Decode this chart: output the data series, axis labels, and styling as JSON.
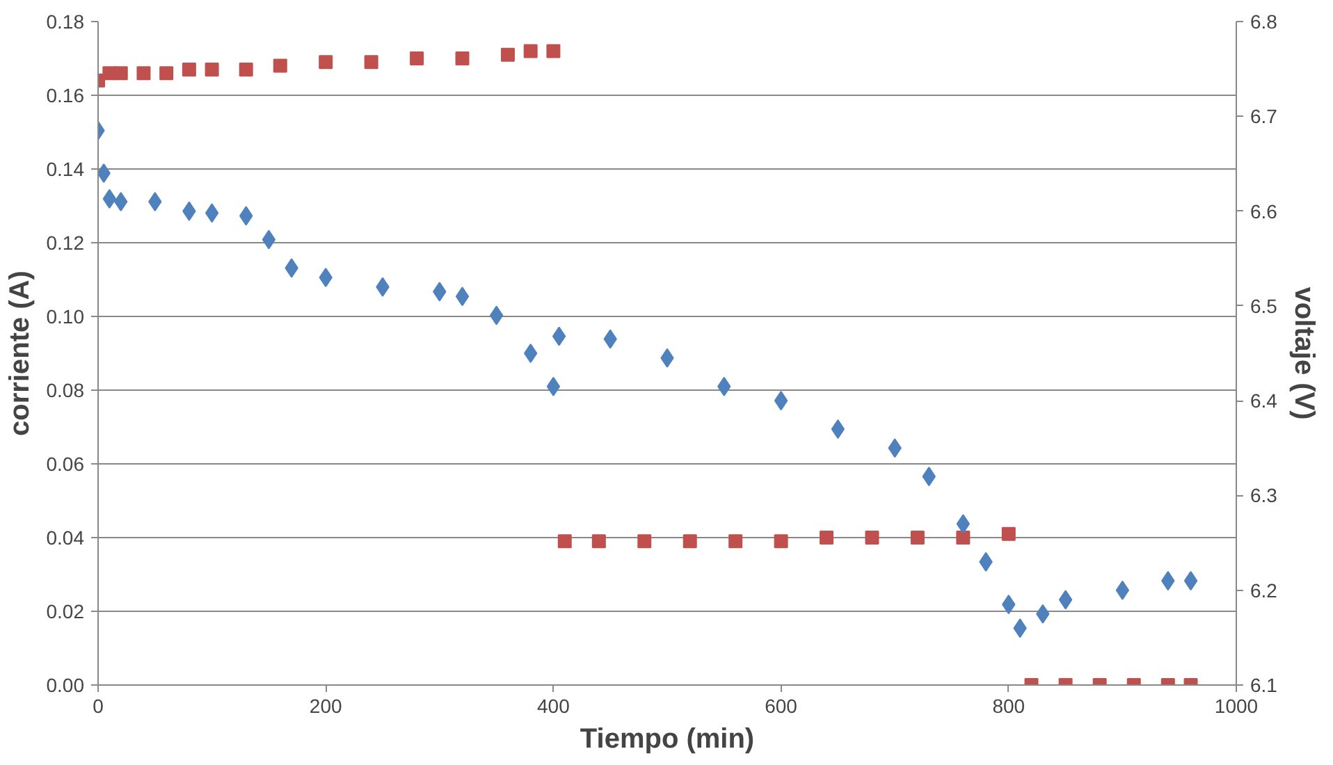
{
  "chart_data": {
    "type": "scatter",
    "xlabel": "Tiempo (min)",
    "ylabel": "corriente (A)",
    "y2label": "voltaje (V)",
    "xlim": [
      0,
      1000
    ],
    "xticks": [
      0,
      200,
      400,
      600,
      800,
      1000
    ],
    "ylim": [
      0,
      0.18
    ],
    "yticks": [
      {
        "value": 0,
        "label": "0.00"
      },
      {
        "value": 0.02,
        "label": "0.02"
      },
      {
        "value": 0.04,
        "label": "0.04"
      },
      {
        "value": 0.06,
        "label": "0.06"
      },
      {
        "value": 0.08,
        "label": "0.08"
      },
      {
        "value": 0.1,
        "label": "0.10"
      },
      {
        "value": 0.12,
        "label": "0.12"
      },
      {
        "value": 0.14,
        "label": "0.14"
      },
      {
        "value": 0.16,
        "label": "0.16"
      },
      {
        "value": 0.18,
        "label": "0.18"
      }
    ],
    "y2lim": [
      6.1,
      6.8
    ],
    "y2ticks": [
      {
        "value": 6.1,
        "label": "6.1"
      },
      {
        "value": 6.2,
        "label": "6.2"
      },
      {
        "value": 6.3,
        "label": "6.3"
      },
      {
        "value": 6.4,
        "label": "6.4"
      },
      {
        "value": 6.5,
        "label": "6.5"
      },
      {
        "value": 6.6,
        "label": "6.6"
      },
      {
        "value": 6.7,
        "label": "6.7"
      },
      {
        "value": 6.8,
        "label": "6.8"
      }
    ],
    "grid": "y",
    "series": [
      {
        "color": "#c0504d",
        "marker": "square",
        "x": [
          0,
          10,
          20,
          40,
          60,
          80,
          100,
          130,
          160,
          200,
          240,
          280,
          320,
          360,
          380,
          400
        ],
        "values": [
          0.164,
          0.166,
          0.166,
          0.166,
          0.166,
          0.167,
          0.167,
          0.167,
          0.168,
          0.169,
          0.169,
          0.17,
          0.17,
          0.171,
          0.172,
          0.172
        ]
      },
      {
        "color": "#c0504d",
        "marker": "square",
        "x": [
          410,
          440,
          480,
          520,
          560,
          600,
          640,
          680,
          720,
          760,
          800
        ],
        "values": [
          0.039,
          0.039,
          0.039,
          0.039,
          0.039,
          0.039,
          0.04,
          0.04,
          0.04,
          0.04,
          0.041
        ]
      },
      {
        "color": "#c0504d",
        "marker": "square",
        "x": [
          820,
          850,
          880,
          910,
          940,
          960
        ],
        "values": [
          0.0,
          0.0,
          0.0,
          0.0,
          0.0,
          0.0
        ]
      },
      {
        "color": "#4f81bd",
        "marker": "diamond",
        "axis": "y2",
        "x": [
          0,
          5,
          10,
          20,
          50,
          80,
          100,
          130,
          150,
          170,
          200,
          250,
          300,
          320,
          350,
          380,
          400,
          405,
          450,
          500,
          550,
          600,
          650,
          700,
          730,
          760,
          780,
          800,
          810,
          830,
          850,
          900,
          940,
          960
        ],
        "values": [
          6.685,
          6.64,
          6.613,
          6.61,
          6.61,
          6.6,
          6.598,
          6.595,
          6.57,
          6.54,
          6.53,
          6.52,
          6.515,
          6.51,
          6.49,
          6.45,
          6.415,
          6.468,
          6.465,
          6.445,
          6.415,
          6.4,
          6.37,
          6.35,
          6.32,
          6.27,
          6.23,
          6.185,
          6.16,
          6.175,
          6.19,
          6.2,
          6.21,
          6.21
        ]
      }
    ]
  }
}
